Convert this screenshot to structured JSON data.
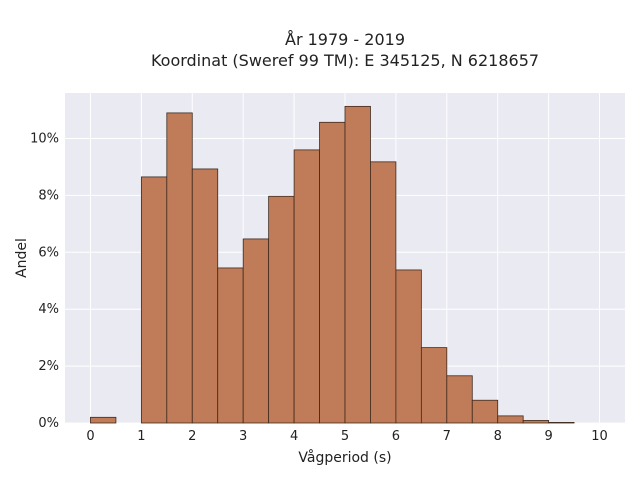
{
  "chart_data": {
    "type": "bar",
    "title": "År 1979 - 2019",
    "subtitle": "Koordinat (Sweref 99 TM): E 345125, N 6218657",
    "xlabel": "Vågperiod (s)",
    "ylabel": "Andel",
    "xlim": [
      -0.5,
      10.5
    ],
    "ylim": [
      0,
      11.6
    ],
    "x_ticks": [
      0,
      1,
      2,
      3,
      4,
      5,
      6,
      7,
      8,
      9,
      10
    ],
    "y_ticks": [
      0,
      2,
      4,
      6,
      8,
      10
    ],
    "y_tick_labels": [
      "0%",
      "2%",
      "4%",
      "6%",
      "8%",
      "10%"
    ],
    "bin_width": 0.5,
    "bins": [
      {
        "start": 0.0,
        "value": 0.2
      },
      {
        "start": 0.5,
        "value": 0.0
      },
      {
        "start": 1.0,
        "value": 8.65
      },
      {
        "start": 1.5,
        "value": 10.9
      },
      {
        "start": 2.0,
        "value": 8.93
      },
      {
        "start": 2.5,
        "value": 5.45
      },
      {
        "start": 3.0,
        "value": 6.47
      },
      {
        "start": 3.5,
        "value": 7.97
      },
      {
        "start": 4.0,
        "value": 9.6
      },
      {
        "start": 4.5,
        "value": 10.57
      },
      {
        "start": 5.0,
        "value": 11.13
      },
      {
        "start": 5.5,
        "value": 9.18
      },
      {
        "start": 6.0,
        "value": 5.38
      },
      {
        "start": 6.5,
        "value": 2.65
      },
      {
        "start": 7.0,
        "value": 1.66
      },
      {
        "start": 7.5,
        "value": 0.8
      },
      {
        "start": 8.0,
        "value": 0.25
      },
      {
        "start": 8.5,
        "value": 0.09
      },
      {
        "start": 9.0,
        "value": 0.02
      }
    ],
    "grid": true,
    "colors": {
      "plot_background": "#eaeaf2",
      "grid": "#ffffff",
      "bar_fill": "#c07c58",
      "bar_edge": "#3d2a1e"
    }
  }
}
